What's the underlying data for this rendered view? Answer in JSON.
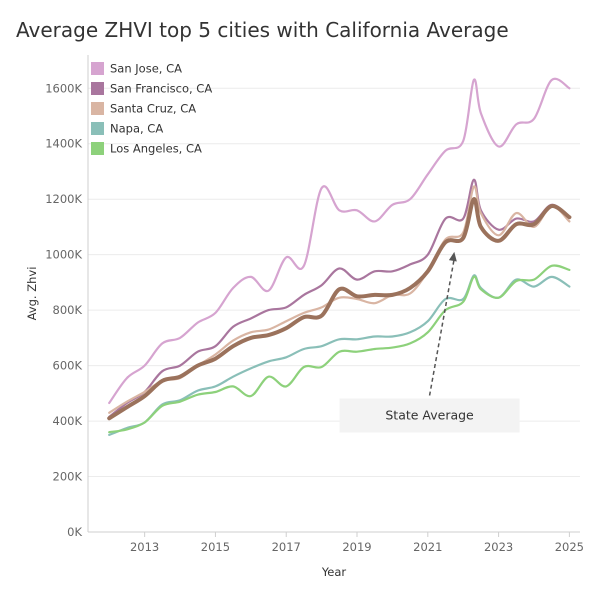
{
  "chart_data": {
    "type": "line",
    "title": "Average ZHVI top 5 cities with California Average",
    "xlabel": "Year",
    "ylabel": "Avg. Zhvi",
    "xlim": [
      2011.4,
      2025.3
    ],
    "ylim": [
      0,
      1720000
    ],
    "x_ticks": [
      2013,
      2015,
      2017,
      2019,
      2021,
      2023,
      2025
    ],
    "x_tick_labels": [
      "2013",
      "2015",
      "2017",
      "2019",
      "2021",
      "2023",
      "2025"
    ],
    "y_ticks": [
      0,
      200000,
      400000,
      600000,
      800000,
      1000000,
      1200000,
      1400000,
      1600000
    ],
    "y_tick_labels": [
      "0K",
      "200K",
      "400K",
      "600K",
      "800K",
      "1000K",
      "1200K",
      "1400K",
      "1600K"
    ],
    "grid": "horizontal",
    "legend_position": "top-left",
    "x": [
      2012.0,
      2012.5,
      2013.0,
      2013.5,
      2014.0,
      2014.5,
      2015.0,
      2015.5,
      2016.0,
      2016.5,
      2017.0,
      2017.5,
      2018.0,
      2018.5,
      2019.0,
      2019.5,
      2020.0,
      2020.5,
      2021.0,
      2021.5,
      2022.0,
      2022.3,
      2022.5,
      2023.0,
      2023.5,
      2024.0,
      2024.5,
      2025.0
    ],
    "series": [
      {
        "name": "San Jose, CA",
        "color": "#d6a4d0",
        "width": 2.2,
        "values": [
          465000,
          555000,
          600000,
          680000,
          700000,
          755000,
          790000,
          880000,
          920000,
          870000,
          990000,
          960000,
          1240000,
          1160000,
          1160000,
          1120000,
          1180000,
          1200000,
          1290000,
          1375000,
          1410000,
          1630000,
          1510000,
          1390000,
          1470000,
          1490000,
          1630000,
          1600000
        ]
      },
      {
        "name": "San Francisco, CA",
        "color": "#a9769e",
        "width": 2.2,
        "values": [
          415000,
          465000,
          505000,
          580000,
          600000,
          650000,
          670000,
          740000,
          770000,
          800000,
          810000,
          855000,
          890000,
          950000,
          910000,
          940000,
          940000,
          965000,
          1000000,
          1130000,
          1130000,
          1270000,
          1160000,
          1090000,
          1130000,
          1120000,
          1180000,
          1135000
        ]
      },
      {
        "name": "Santa Cruz, CA",
        "color": "#d9b5a3",
        "width": 2.2,
        "values": [
          430000,
          470000,
          505000,
          545000,
          555000,
          600000,
          640000,
          690000,
          720000,
          730000,
          760000,
          790000,
          810000,
          845000,
          840000,
          825000,
          855000,
          860000,
          940000,
          1055000,
          1080000,
          1245000,
          1150000,
          1070000,
          1150000,
          1100000,
          1175000,
          1120000
        ]
      },
      {
        "name": "Napa, CA",
        "color": "#8abfb8",
        "width": 2.2,
        "values": [
          350000,
          375000,
          395000,
          460000,
          475000,
          510000,
          525000,
          560000,
          590000,
          615000,
          630000,
          660000,
          670000,
          695000,
          695000,
          705000,
          705000,
          720000,
          760000,
          840000,
          840000,
          925000,
          880000,
          845000,
          910000,
          885000,
          920000,
          885000
        ]
      },
      {
        "name": "Los Angeles, CA",
        "color": "#8dd17b",
        "width": 2.2,
        "values": [
          360000,
          370000,
          395000,
          455000,
          470000,
          495000,
          505000,
          525000,
          490000,
          560000,
          525000,
          595000,
          595000,
          650000,
          650000,
          660000,
          665000,
          680000,
          720000,
          800000,
          830000,
          920000,
          875000,
          845000,
          905000,
          910000,
          960000,
          945000
        ]
      },
      {
        "name": "",
        "color": "#9b725c",
        "width": 4,
        "values": [
          410000,
          450000,
          490000,
          545000,
          560000,
          600000,
          625000,
          670000,
          700000,
          710000,
          735000,
          775000,
          780000,
          875000,
          850000,
          855000,
          855000,
          880000,
          940000,
          1045000,
          1060000,
          1200000,
          1100000,
          1050000,
          1110000,
          1110000,
          1175000,
          1135000
        ]
      }
    ],
    "annotations": [
      {
        "text": "State Average",
        "x": 2021.05,
        "y": 420000,
        "arrow_to": [
          2021.75,
          1010000
        ]
      }
    ]
  }
}
